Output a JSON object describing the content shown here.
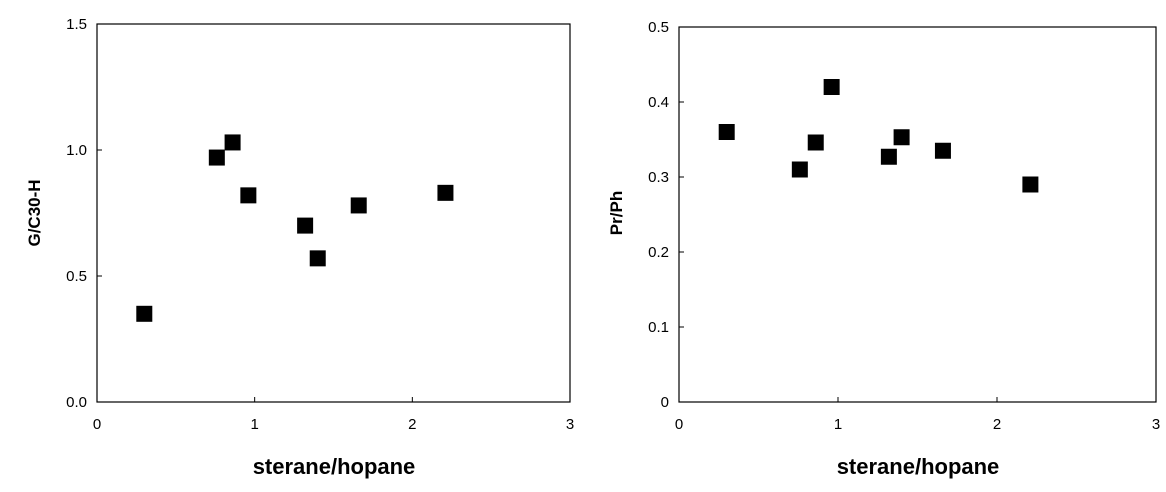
{
  "chart_data": [
    {
      "type": "scatter",
      "title": "",
      "xlabel": "sterane/hopane",
      "ylabel": "G/C30-H",
      "xlim": [
        0,
        3
      ],
      "ylim": [
        0,
        1.5
      ],
      "x_ticks": [
        "0",
        "1",
        "2",
        "3"
      ],
      "y_ticks": [
        "0.0",
        "0.5",
        "1.0",
        "1.5"
      ],
      "grid": false,
      "marker": "square",
      "color": "#000000",
      "series": [
        {
          "x": [
            0.3,
            0.76,
            0.86,
            0.96,
            1.32,
            1.4,
            1.66,
            2.21
          ],
          "y": [
            0.35,
            0.97,
            1.03,
            0.82,
            0.7,
            0.57,
            0.78,
            0.83
          ]
        }
      ]
    },
    {
      "type": "scatter",
      "title": "",
      "xlabel": "sterane/hopane",
      "ylabel": "Pr/Ph",
      "xlim": [
        0,
        3
      ],
      "ylim": [
        0,
        0.5
      ],
      "x_ticks": [
        "0",
        "1",
        "2",
        "3"
      ],
      "y_ticks": [
        "0",
        "0.1",
        "0.2",
        "0.3",
        "0.4",
        "0.5"
      ],
      "grid": false,
      "marker": "square",
      "color": "#000000",
      "series": [
        {
          "x": [
            0.3,
            0.76,
            0.86,
            0.96,
            1.32,
            1.4,
            1.66,
            2.21
          ],
          "y": [
            0.36,
            0.31,
            0.346,
            0.42,
            0.327,
            0.353,
            0.335,
            0.29
          ]
        }
      ]
    }
  ]
}
